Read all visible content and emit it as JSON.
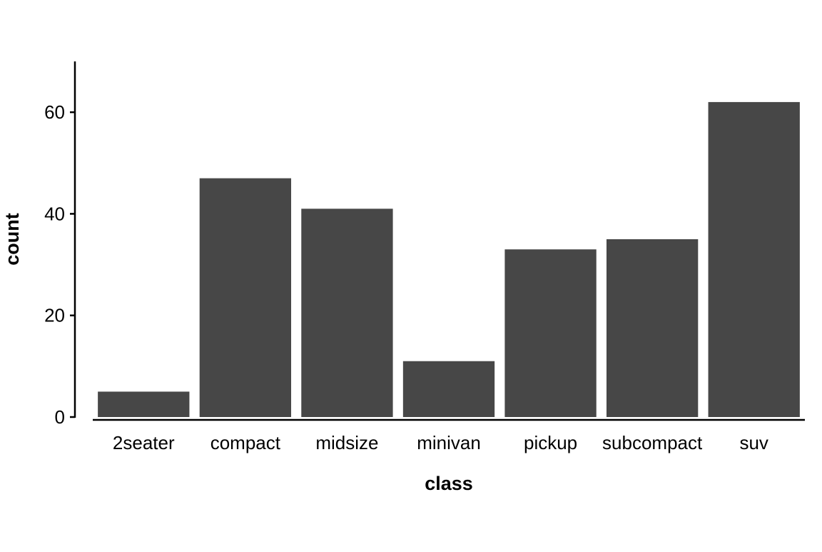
{
  "chart_data": {
    "type": "bar",
    "categories": [
      "2seater",
      "compact",
      "midsize",
      "minivan",
      "pickup",
      "subcompact",
      "suv"
    ],
    "values": [
      5,
      47,
      41,
      11,
      33,
      35,
      62
    ],
    "xlabel": "class",
    "ylabel": "count",
    "ylim": [
      0,
      70
    ],
    "yticks": [
      0,
      20,
      40,
      60
    ],
    "grid": false,
    "legend": "none",
    "colors": {
      "bar": "#474747",
      "axis": "#000000",
      "background": "#ffffff"
    }
  }
}
